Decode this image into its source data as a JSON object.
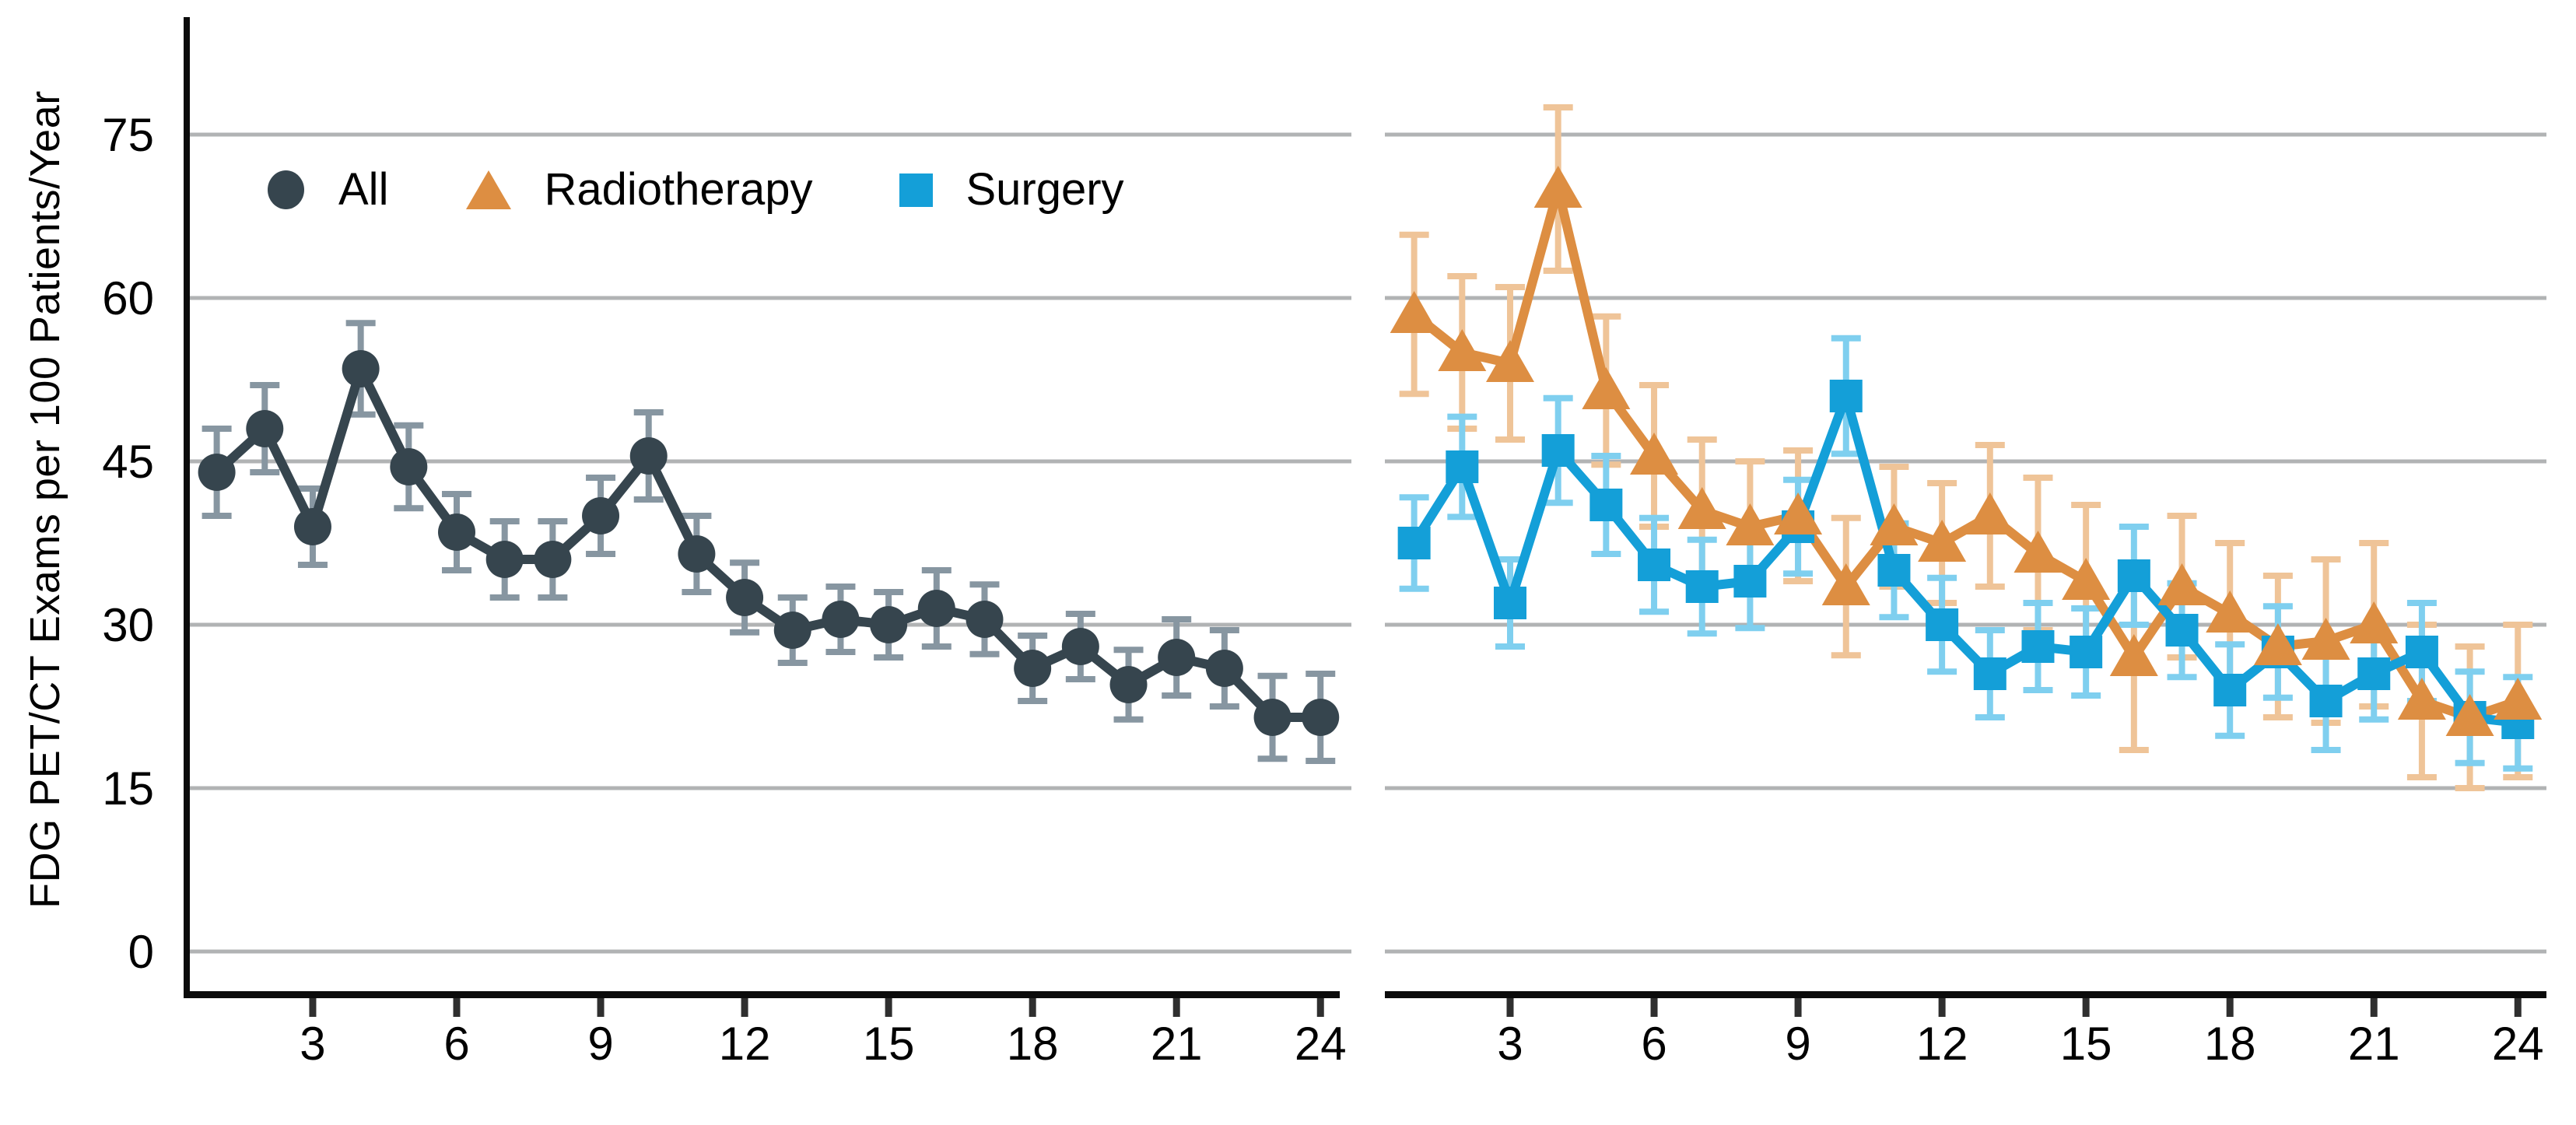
{
  "figure": {
    "ylabel": "FDG PET/CT Exams per 100 Patients/Year",
    "background": "#ffffff"
  },
  "legend": {
    "items": [
      {
        "label": "All",
        "marker": "circle-icon",
        "color": "#36454e"
      },
      {
        "label": "Radiotherapy",
        "marker": "triangle-icon",
        "color": "#dd8e42"
      },
      {
        "label": "Surgery",
        "marker": "square-icon",
        "color": "#149fd8"
      }
    ]
  },
  "colors": {
    "grid": "#b1b3b4",
    "axis": "#0b0b0b",
    "tick": "#2f2f2f",
    "text": "#000000",
    "all": "#36454e",
    "all_err": "#8796a1",
    "radiotherapy": "#dd8e42",
    "radiotherapy_err": "#efc498",
    "surgery": "#149fd8",
    "surgery_err": "#7fcfef"
  },
  "axes": {
    "y_ticks": [
      75,
      60,
      45,
      30,
      15,
      0
    ],
    "x_ticks": [
      3,
      6,
      9,
      12,
      15,
      18,
      21,
      24
    ],
    "y_range": [
      0,
      78
    ],
    "x_range": [
      1,
      24
    ],
    "grid": true,
    "legend_position": "top-left"
  },
  "chart_data": [
    {
      "type": "line",
      "panel": "left",
      "title": "",
      "xlabel": "",
      "ylabel": "FDG PET/CT Exams per 100 Patients/Year",
      "x": [
        1,
        2,
        3,
        4,
        5,
        6,
        7,
        8,
        9,
        10,
        11,
        12,
        13,
        14,
        15,
        16,
        17,
        18,
        19,
        20,
        21,
        22,
        23,
        24
      ],
      "series": [
        {
          "name": "All",
          "marker": "circle",
          "color": "#36454e",
          "err_color": "#8796a1",
          "values": [
            44,
            48,
            39,
            53.5,
            44.5,
            38.5,
            36,
            36,
            40,
            45.5,
            36.5,
            32.5,
            29.5,
            30.5,
            30,
            31.5,
            30.5,
            26,
            28,
            24.5,
            27,
            26,
            21.5,
            21.5
          ],
          "errors": [
            4,
            4,
            3.5,
            4.2,
            3.8,
            3.5,
            3.5,
            3.5,
            3.5,
            4,
            3.5,
            3.2,
            3,
            3,
            3,
            3.5,
            3.2,
            3,
            3,
            3.2,
            3.5,
            3.5,
            3.8,
            4
          ]
        }
      ]
    },
    {
      "type": "line",
      "panel": "right",
      "title": "",
      "xlabel": "",
      "ylabel": "FDG PET/CT Exams per 100 Patients/Year",
      "x": [
        1,
        2,
        3,
        4,
        5,
        6,
        7,
        8,
        9,
        10,
        11,
        12,
        13,
        14,
        15,
        16,
        17,
        18,
        19,
        20,
        21,
        22,
        23,
        24
      ],
      "series": [
        {
          "name": "Radiotherapy",
          "marker": "triangle",
          "color": "#dd8e42",
          "err_color": "#efc498",
          "values": [
            58.5,
            55,
            54,
            70,
            51.5,
            45.5,
            40.5,
            39,
            40,
            33.5,
            39,
            37.5,
            40,
            36.5,
            34,
            27,
            33.5,
            31,
            28,
            28.5,
            30,
            23,
            21.5,
            23
          ],
          "errors": [
            7.3,
            7,
            7,
            7.5,
            6.8,
            6.5,
            6.5,
            6,
            6,
            6.3,
            5.5,
            5.5,
            6.5,
            7,
            7,
            8.5,
            6.5,
            6.5,
            6.5,
            7.5,
            7.5,
            7,
            6.5,
            7
          ]
        },
        {
          "name": "Surgery",
          "marker": "square",
          "color": "#149fd8",
          "err_color": "#7fcfef",
          "values": [
            37.5,
            44.5,
            32,
            46,
            41,
            35.5,
            33.5,
            34,
            39,
            51,
            35,
            30,
            25.5,
            28,
            27.5,
            34.5,
            29.5,
            24,
            27.5,
            23,
            25.5,
            27.5,
            21.5,
            21
          ],
          "errors": [
            4.2,
            4.6,
            4,
            4.8,
            4.5,
            4.3,
            4.3,
            4.3,
            4.3,
            5.3,
            4.3,
            4.3,
            4,
            4,
            4,
            4.5,
            4.3,
            4.2,
            4.2,
            4.5,
            4.2,
            4.5,
            4.2,
            4.2
          ]
        }
      ]
    }
  ]
}
